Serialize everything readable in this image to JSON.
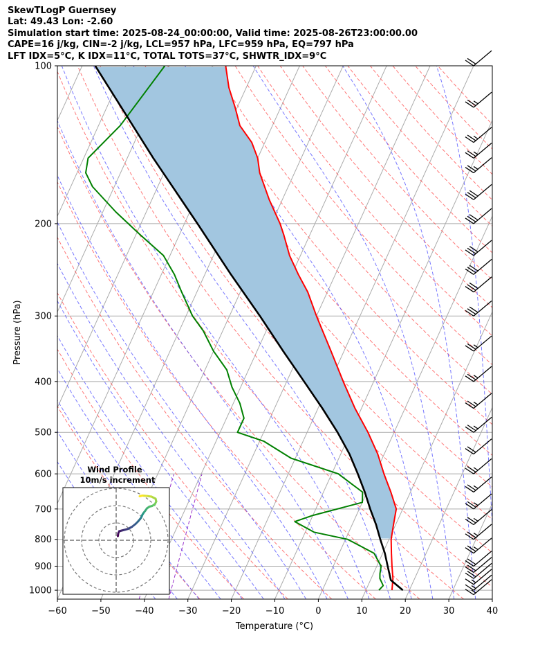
{
  "header": {
    "line1": "SkewTLogP Guernsey",
    "line2": "Lat: 49.43   Lon: -2.60",
    "line3": "Simulation start time: 2025-08-24_00:00:00, Valid time: 2025-08-26T23:00:00.00",
    "line4": "CAPE=16 j/kg, CIN=-2 j/kg, LCL=957 hPa, LFC=959 hPa, EQ=797 hPa",
    "line5": "LFT IDX=5°C, K IDX=11°C, TOTAL TOTS=37°C, SHWTR_IDX=9°C"
  },
  "colors": {
    "temperature": "#ff0000",
    "dewpoint": "#008000",
    "parcel": "#000000",
    "cape_fill": "#a2c6e0",
    "dry_adiabat": "#ff5555",
    "moist_adiabat": "#5555ff",
    "mixing_ratio": "#9933cc",
    "isotherm": "#aaaaaa"
  },
  "chart_data": {
    "type": "skewt",
    "xlabel": "Temperature (°C)",
    "ylabel": "Pressure (hPa)",
    "xlim": [
      -60,
      40
    ],
    "ylim": [
      1040,
      100
    ],
    "x_ticks": [
      -60,
      -50,
      -40,
      -30,
      -20,
      -10,
      0,
      10,
      20,
      30,
      40
    ],
    "x_tick_labels": [
      "−60",
      "−50",
      "−40",
      "−30",
      "−20",
      "−10",
      "0",
      "10",
      "20",
      "30",
      "40"
    ],
    "y_ticks": [
      1000,
      900,
      800,
      700,
      600,
      500,
      400,
      300,
      200,
      100
    ],
    "y_tick_labels": [
      "1000",
      "900",
      "800",
      "700",
      "600",
      "500",
      "400",
      "300",
      "200",
      "100"
    ],
    "temperature": {
      "p": [
        1000,
        950,
        900,
        850,
        800,
        750,
        700,
        650,
        600,
        550,
        500,
        450,
        400,
        350,
        300,
        270,
        250,
        230,
        210,
        200,
        180,
        160,
        150,
        140,
        130,
        120,
        110,
        100
      ],
      "t": [
        16,
        15,
        13.5,
        12,
        10.5,
        9.5,
        8.5,
        5.5,
        2,
        -1.5,
        -6,
        -11.5,
        -17,
        -23,
        -30,
        -34.5,
        -38.5,
        -42.5,
        -46,
        -48,
        -53,
        -58,
        -60,
        -63,
        -67.5,
        -70.5,
        -74,
        -77
      ]
    },
    "dewpoint": {
      "p": [
        1000,
        980,
        950,
        930,
        900,
        850,
        800,
        775,
        740,
        720,
        680,
        650,
        600,
        560,
        520,
        500,
        470,
        440,
        410,
        380,
        350,
        320,
        300,
        270,
        250,
        230,
        210,
        190,
        170,
        160,
        150,
        130,
        100
      ],
      "t": [
        13,
        13.5,
        12,
        11.5,
        11,
        8,
        0.5,
        -8,
        -13.5,
        -10,
        0,
        -1,
        -8.5,
        -21,
        -29,
        -36,
        -36,
        -38.5,
        -42,
        -45,
        -50,
        -54.5,
        -58.5,
        -63.5,
        -67,
        -71.5,
        -79,
        -87,
        -95,
        -98,
        -99,
        -95,
        -91
      ]
    },
    "parcel": {
      "p": [
        1000,
        960,
        957,
        900,
        850,
        800,
        750,
        700,
        650,
        600,
        550,
        500,
        450,
        400,
        350,
        300,
        250,
        200,
        150,
        100
      ],
      "t": [
        18.5,
        15,
        14.7,
        12.5,
        10.5,
        8,
        5.5,
        2.5,
        -0.5,
        -4,
        -8,
        -13,
        -19,
        -26,
        -34,
        -43,
        -54,
        -67,
        -84,
        -107
      ]
    },
    "wind_barbs": {
      "p": [
        1020,
        1000,
        975,
        950,
        925,
        900,
        850,
        800,
        750,
        700,
        650,
        600,
        550,
        500,
        450,
        400,
        350,
        300,
        270,
        250,
        230,
        200,
        180,
        160,
        150,
        140,
        120,
        100
      ],
      "speed_kt": [
        15,
        15,
        15,
        20,
        20,
        20,
        25,
        25,
        25,
        25,
        25,
        25,
        20,
        25,
        25,
        25,
        25,
        30,
        30,
        30,
        30,
        30,
        30,
        25,
        25,
        25,
        25,
        20
      ],
      "direction_deg": [
        240,
        240,
        240,
        235,
        235,
        235,
        230,
        230,
        230,
        230,
        225,
        225,
        225,
        225,
        230,
        230,
        230,
        235,
        235,
        235,
        235,
        240,
        240,
        240,
        240,
        240,
        240,
        240
      ]
    },
    "hodograph": {
      "title": "Wind Profile",
      "subtitle": "10m/s increment",
      "u": [
        0.5,
        0.6,
        0.9,
        1.6,
        2.4,
        3.5,
        4.6,
        5.6,
        6.3,
        6.9,
        7.2,
        7.4,
        7.6,
        8.0,
        8.4,
        8.9,
        9.6,
        10.4,
        11.2,
        11.6,
        11.4,
        10.2,
        8.8,
        7.6,
        6.8
      ],
      "v": [
        1.2,
        2.0,
        2.6,
        2.8,
        3.0,
        3.3,
        3.9,
        4.7,
        5.4,
        6.1,
        6.5,
        6.9,
        7.4,
        8.0,
        8.5,
        9.2,
        9.7,
        9.9,
        10.4,
        11.2,
        12.0,
        12.6,
        12.8,
        12.9,
        12.7
      ]
    }
  }
}
